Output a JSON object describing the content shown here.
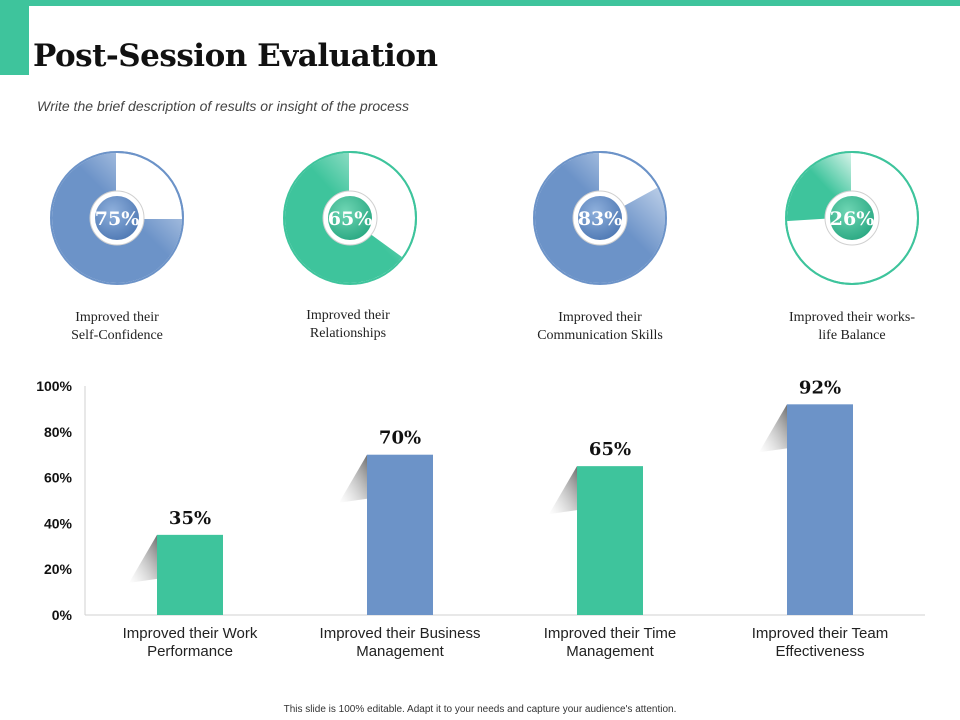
{
  "header": {
    "title": "Post-Session Evaluation",
    "subtitle": "Write the brief description of results or insight of the process"
  },
  "colors": {
    "accent": "#3ec49c",
    "blue": "#6c93c8",
    "light_blue": "#9ab7dd",
    "green": "#3ec49c"
  },
  "chart_data": [
    {
      "type": "pie",
      "series": [
        {
          "value": 75,
          "label": "75%",
          "caption": [
            "Improved their",
            "Self-Confidence"
          ],
          "color": "blue"
        },
        {
          "value": 65,
          "label": "65%",
          "caption": [
            "Improved their",
            "Relationships"
          ],
          "color": "green"
        },
        {
          "value": 83,
          "label": "83%",
          "caption": [
            "Improved their",
            "Communication Skills"
          ],
          "color": "blue"
        },
        {
          "value": 26,
          "label": "26%",
          "caption": [
            "Improved their works-",
            "life Balance"
          ],
          "color": "green"
        }
      ]
    },
    {
      "type": "bar",
      "categories": [
        [
          "Improved their Work",
          "Performance"
        ],
        [
          "Improved their Business",
          "Management"
        ],
        [
          "Improved their Time",
          "Management"
        ],
        [
          "Improved their Team",
          "Effectiveness"
        ]
      ],
      "values": [
        35,
        70,
        65,
        92
      ],
      "value_labels": [
        "35%",
        "70%",
        "65%",
        "92%"
      ],
      "bar_colors": [
        "green",
        "blue",
        "green",
        "blue"
      ],
      "yticks": [
        "0%",
        "20%",
        "40%",
        "60%",
        "80%",
        "100%"
      ],
      "ylim": [
        0,
        100
      ]
    }
  ],
  "footer": {
    "text": "This slide is 100% editable. Adapt it to your needs and capture your audience's attention."
  }
}
